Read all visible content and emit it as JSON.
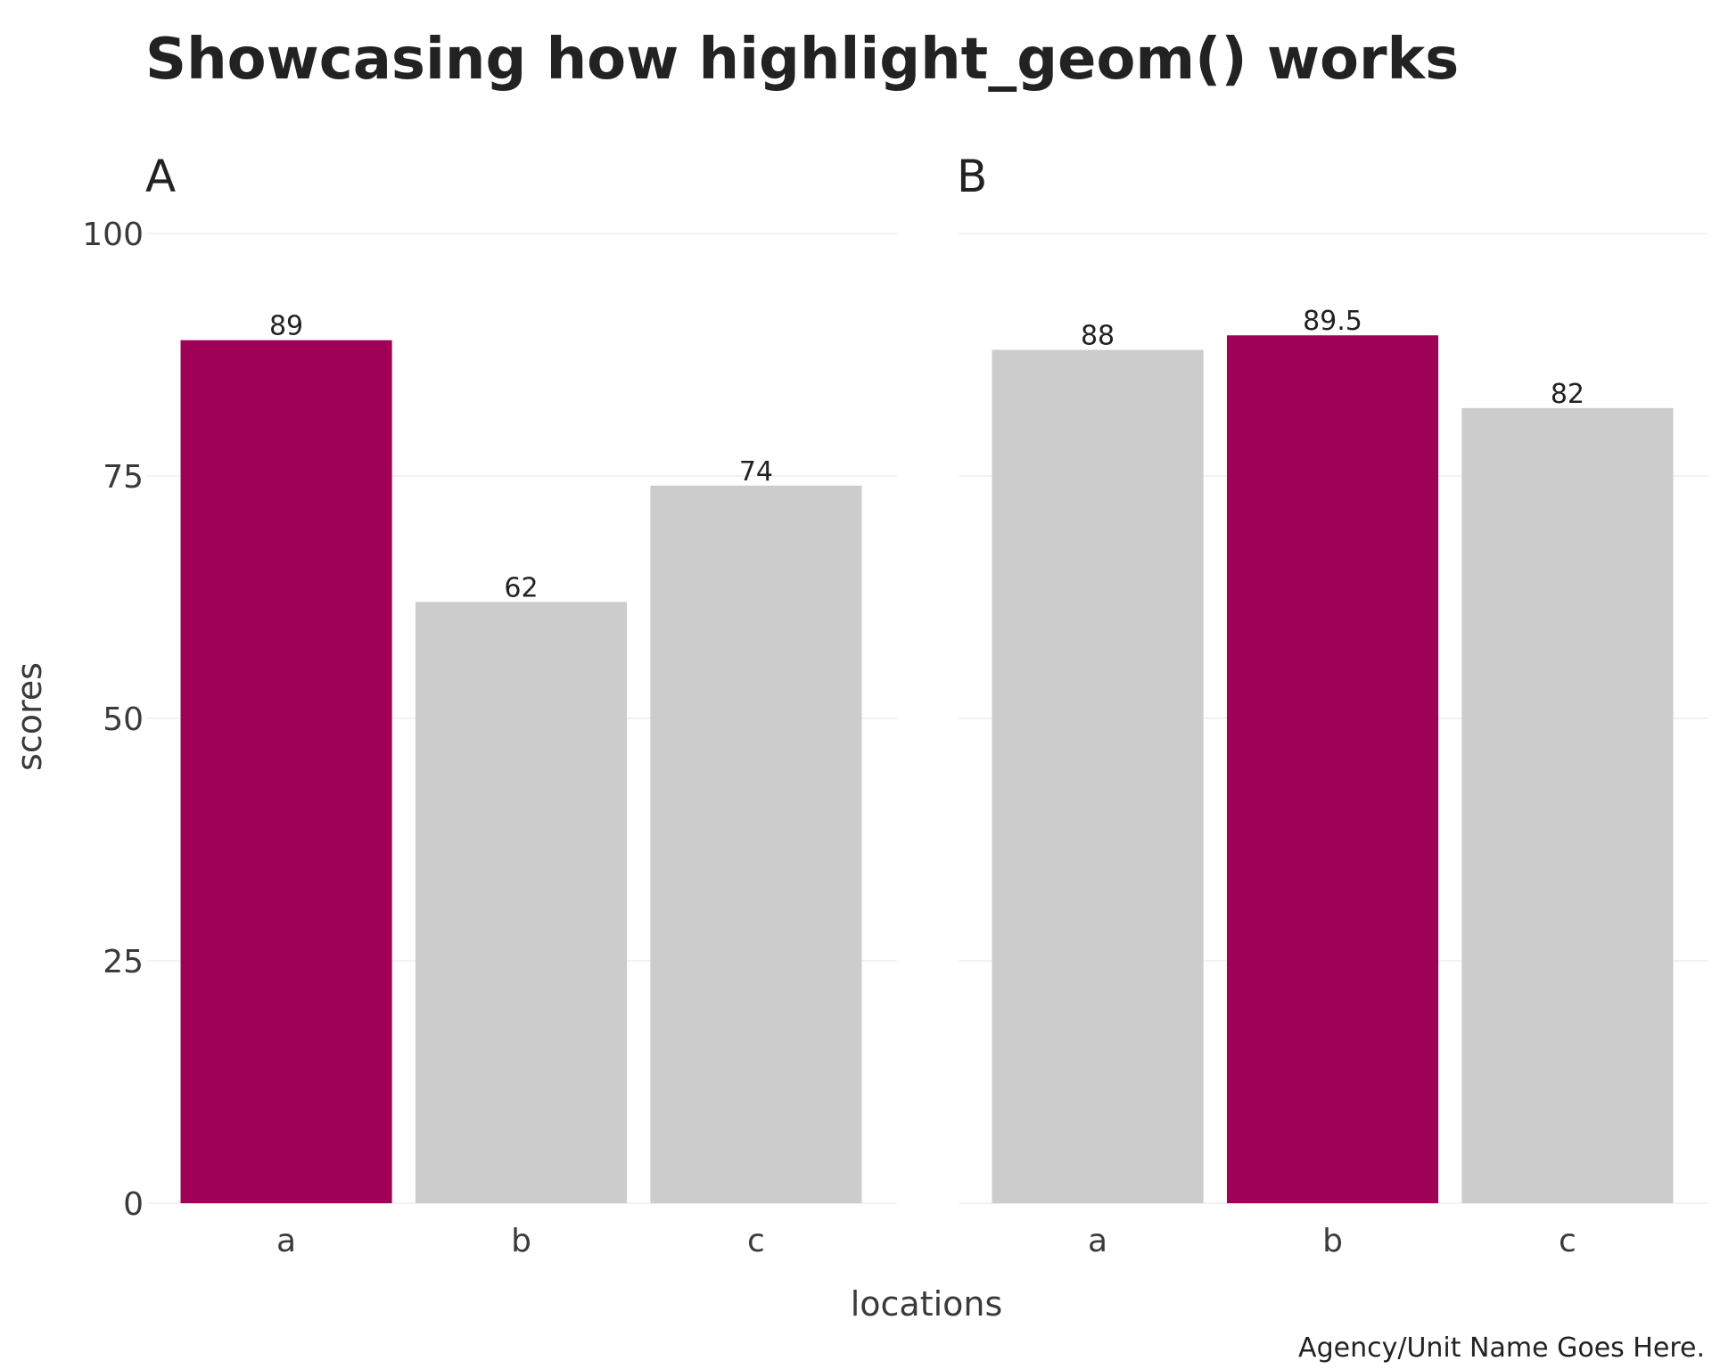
{
  "chart_data": {
    "type": "bar",
    "title": "Showcasing how highlight_geom() works",
    "xlabel": "locations",
    "ylabel": "scores",
    "caption": "Agency/Unit Name Goes Here.",
    "ylim": [
      0,
      100
    ],
    "yticks": [
      "0",
      "25",
      "50",
      "75",
      "100"
    ],
    "grid": true,
    "legend": "none",
    "colors": {
      "highlight": "#9e0156",
      "default": "#cccccc"
    },
    "facets": [
      {
        "label": "A",
        "categories": [
          "a",
          "b",
          "c"
        ],
        "values": [
          89,
          62,
          74
        ],
        "value_labels": [
          "89",
          "62",
          "74"
        ],
        "highlighted": [
          true,
          false,
          false
        ]
      },
      {
        "label": "B",
        "categories": [
          "a",
          "b",
          "c"
        ],
        "values": [
          88,
          89.5,
          82
        ],
        "value_labels": [
          "88",
          "89.5",
          "82"
        ],
        "highlighted": [
          false,
          true,
          false
        ]
      }
    ]
  }
}
